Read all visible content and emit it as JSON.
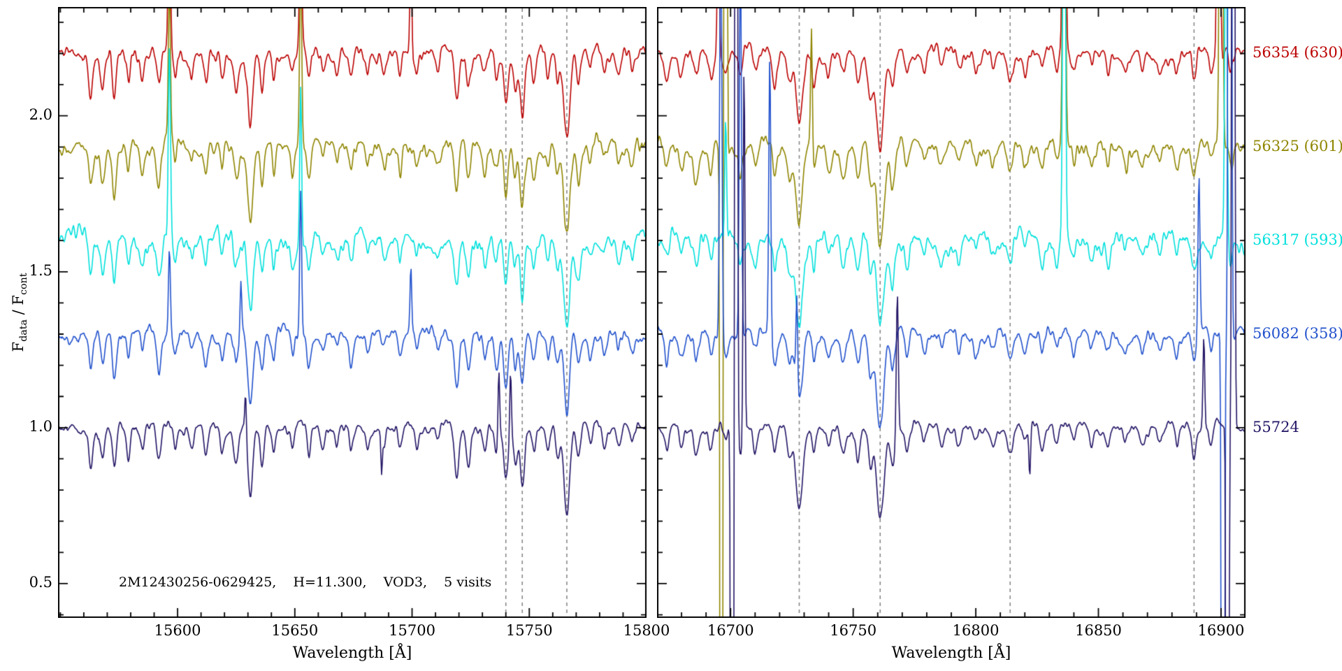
{
  "chart_data": {
    "type": "line",
    "title": "",
    "ylabel_parts": [
      "F",
      "data",
      " / F",
      "cont"
    ],
    "ylim": [
      0.39,
      2.349
    ],
    "yticks": [
      0.5,
      1.0,
      1.5,
      2.0
    ],
    "ytick_labels": [
      "0.5",
      "1.0",
      "1.5",
      "2.0"
    ],
    "y_minor_step": 0.1,
    "annotation": "2M12430256-0629425,    H=11.300,    VOD3,    5 visits",
    "styles": {
      "background": "#ffffff",
      "axis_color": "#000000",
      "dashed_line_color": "#808080"
    },
    "panels": [
      {
        "xlabel": "Wavelength [Å]",
        "xlim": [
          15549,
          15800
        ],
        "xticks": [
          15600,
          15650,
          15700,
          15750,
          15800
        ],
        "xtick_labels": [
          "15600",
          "15650",
          "15700",
          "15750",
          "15800"
        ],
        "x_minor_step": 10,
        "dashed_lines": [
          15740,
          15747,
          15766
        ],
        "absorption_lines": [
          [
            15563,
            0.12,
            0.8
          ],
          [
            15568,
            0.1,
            0.9
          ],
          [
            15573,
            0.14,
            0.8
          ],
          [
            15579,
            0.09,
            0.7
          ],
          [
            15585,
            0.07,
            0.8
          ],
          [
            15592,
            0.12,
            0.9
          ],
          [
            15599,
            0.07,
            0.7
          ],
          [
            15606,
            0.06,
            0.8
          ],
          [
            15612,
            0.09,
            0.8
          ],
          [
            15619,
            0.07,
            0.7
          ],
          [
            15625,
            0.1,
            0.9
          ],
          [
            15631,
            0.22,
            1.1
          ],
          [
            15636,
            0.12,
            0.8
          ],
          [
            15641,
            0.08,
            0.7
          ],
          [
            15649,
            0.07,
            0.8
          ],
          [
            15656,
            0.1,
            0.8
          ],
          [
            15662,
            0.06,
            0.8
          ],
          [
            15668,
            0.05,
            0.7
          ],
          [
            15674,
            0.08,
            0.8
          ],
          [
            15681,
            0.06,
            0.7
          ],
          [
            15688,
            0.05,
            0.8
          ],
          [
            15695,
            0.07,
            0.8
          ],
          [
            15702,
            0.06,
            0.7
          ],
          [
            15711,
            0.05,
            0.8
          ],
          [
            15719,
            0.16,
            1.0
          ],
          [
            15724,
            0.12,
            0.9
          ],
          [
            15731,
            0.07,
            0.8
          ],
          [
            15736,
            0.09,
            0.8
          ],
          [
            15740,
            0.16,
            0.9
          ],
          [
            15744,
            0.1,
            0.8
          ],
          [
            15747,
            0.18,
            0.9
          ],
          [
            15752,
            0.08,
            0.8
          ],
          [
            15758,
            0.08,
            0.8
          ],
          [
            15762,
            0.1,
            0.8
          ],
          [
            15766,
            0.28,
            1.2
          ],
          [
            15771,
            0.1,
            0.9
          ],
          [
            15776,
            0.07,
            0.8
          ],
          [
            15782,
            0.06,
            0.8
          ],
          [
            15788,
            0.05,
            0.8
          ],
          [
            15794,
            0.06,
            0.8
          ]
        ]
      },
      {
        "xlabel": "Wavelength [Å]",
        "xlim": [
          16670,
          16910
        ],
        "xticks": [
          16700,
          16750,
          16800,
          16850,
          16900
        ],
        "xtick_labels": [
          "16700",
          "16750",
          "16800",
          "16850",
          "16900"
        ],
        "x_minor_step": 10,
        "dashed_lines": [
          16728,
          16761,
          16814,
          16889
        ],
        "absorption_lines": [
          [
            16674,
            0.08,
            0.8
          ],
          [
            16680,
            0.06,
            0.8
          ],
          [
            16686,
            0.08,
            0.9
          ],
          [
            16692,
            0.07,
            0.8
          ],
          [
            16698,
            0.06,
            0.8
          ],
          [
            16704,
            0.08,
            0.8
          ],
          [
            16710,
            0.07,
            0.9
          ],
          [
            16718,
            0.1,
            0.9
          ],
          [
            16724,
            0.1,
            0.9
          ],
          [
            16728,
            0.24,
            1.4
          ],
          [
            16734,
            0.08,
            0.8
          ],
          [
            16740,
            0.06,
            0.8
          ],
          [
            16746,
            0.08,
            0.9
          ],
          [
            16752,
            0.1,
            0.9
          ],
          [
            16757,
            0.12,
            0.9
          ],
          [
            16761,
            0.3,
            1.5
          ],
          [
            16766,
            0.12,
            0.9
          ],
          [
            16772,
            0.08,
            0.8
          ],
          [
            16779,
            0.06,
            0.8
          ],
          [
            16786,
            0.05,
            0.8
          ],
          [
            16793,
            0.06,
            0.8
          ],
          [
            16800,
            0.05,
            0.8
          ],
          [
            16807,
            0.05,
            0.8
          ],
          [
            16814,
            0.08,
            1.1
          ],
          [
            16820,
            0.05,
            0.8
          ],
          [
            16827,
            0.06,
            0.8
          ],
          [
            16833,
            0.05,
            0.8
          ],
          [
            16840,
            0.06,
            0.8
          ],
          [
            16847,
            0.05,
            0.8
          ],
          [
            16854,
            0.06,
            0.8
          ],
          [
            16861,
            0.05,
            0.9
          ],
          [
            16868,
            0.06,
            0.8
          ],
          [
            16875,
            0.05,
            0.8
          ],
          [
            16882,
            0.06,
            0.8
          ],
          [
            16889,
            0.09,
            0.9
          ],
          [
            16896,
            0.06,
            0.8
          ],
          [
            16904,
            0.06,
            0.8
          ]
        ]
      }
    ],
    "series": [
      {
        "label": "56354 (630)",
        "color": "#bb0000",
        "offset": 2.2,
        "seed": 11,
        "noise": 0.022,
        "spikes": [
          [
            [
              15596.5,
              0.55,
              0.45
            ],
            [
              15652.5,
              0.5,
              0.45
            ],
            [
              15699.5,
              0.33,
              0.4
            ]
          ],
          [
            [
              16695,
              0.5,
              0.4
            ],
            [
              16836,
              2.0,
              0.5
            ],
            [
              16899,
              1.6,
              0.5
            ]
          ]
        ]
      },
      {
        "label": "56325 (601)",
        "color": "#8f8500",
        "offset": 1.9,
        "seed": 22,
        "noise": 0.025,
        "spikes": [
          [
            [
              15596.5,
              0.5,
              0.45
            ],
            [
              15652.5,
              0.6,
              0.45
            ]
          ],
          [
            [
              16696.2,
              -7,
              0.35
            ],
            [
              16698,
              7,
              0.35
            ],
            [
              16733,
              0.4,
              0.35
            ],
            [
              16836,
              1.4,
              0.5
            ],
            [
              16900,
              2.5,
              0.5
            ]
          ]
        ]
      },
      {
        "label": "56317 (593)",
        "color": "#00e0dc",
        "offset": 1.6,
        "seed": 33,
        "noise": 0.027,
        "spikes": [
          [
            [
              15596.5,
              0.65,
              0.45
            ],
            [
              15652.5,
              0.5,
              0.4
            ]
          ],
          [
            [
              16698,
              0.45,
              0.4
            ],
            [
              16836,
              1.6,
              0.5
            ],
            [
              16902,
              1.2,
              0.45
            ]
          ]
        ]
      },
      {
        "label": "56082 (358)",
        "color": "#2151cc",
        "offset": 1.3,
        "seed": 44,
        "noise": 0.02,
        "spikes": [
          [
            [
              15596.5,
              0.28,
              0.4
            ],
            [
              15627,
              0.17,
              0.35
            ],
            [
              15652.5,
              0.45,
              0.4
            ],
            [
              15699.5,
              0.22,
              0.35
            ]
          ],
          [
            [
              16696,
              1.4,
              0.45
            ],
            [
              16704,
              1.3,
              0.45
            ],
            [
              16716,
              0.9,
              0.4
            ],
            [
              16727,
              0.3,
              0.35
            ],
            [
              16891,
              0.5,
              0.4
            ],
            [
              16900.8,
              -7,
              0.4
            ],
            [
              16903.6,
              7,
              0.45
            ]
          ]
        ]
      },
      {
        "label": "55724",
        "color": "#231465",
        "offset": 1.0,
        "seed": 55,
        "noise": 0.016,
        "spikes": [
          [
            [
              15629,
              0.15,
              0.35
            ],
            [
              15687,
              -0.12,
              0.3
            ],
            [
              15737,
              0.22,
              0.35
            ],
            [
              15742,
              0.2,
              0.35
            ]
          ],
          [
            [
              16700.6,
              -7,
              0.35
            ],
            [
              16702.3,
              7,
              0.35
            ],
            [
              16705.5,
              1.2,
              0.35
            ],
            [
              16768,
              0.45,
              0.4
            ],
            [
              16822,
              -0.16,
              0.35
            ],
            [
              16893,
              0.3,
              0.35
            ],
            [
              16902.6,
              -7,
              0.35
            ],
            [
              16905,
              7,
              0.4
            ]
          ]
        ]
      }
    ]
  }
}
